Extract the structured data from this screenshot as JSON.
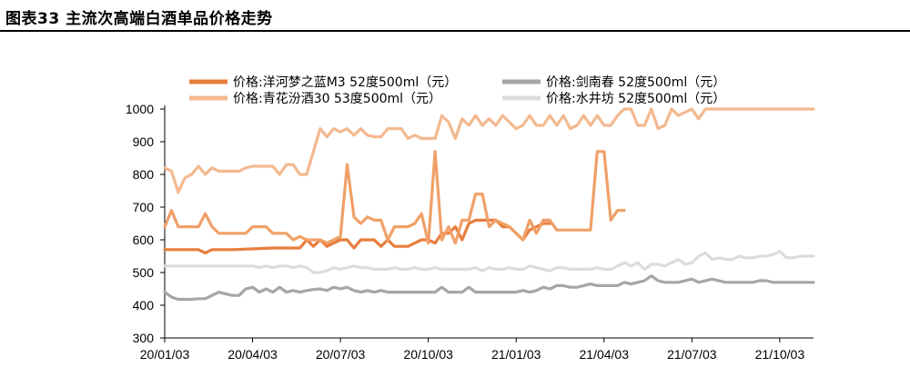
{
  "figure": {
    "title": "图表33    主流次高端白酒单品价格走势"
  },
  "chart_data": {
    "type": "line",
    "x_labels": [
      "20/01/03",
      "20/04/03",
      "20/07/03",
      "20/10/03",
      "21/01/03",
      "21/04/03",
      "21/07/03",
      "21/10/03"
    ],
    "x_label_weeks": [
      0,
      13,
      26,
      39,
      52,
      65,
      78,
      91
    ],
    "ylim": [
      300,
      1000
    ],
    "yticks": [
      300,
      400,
      500,
      600,
      700,
      800,
      900,
      1000
    ],
    "xlabel": "",
    "ylabel": "",
    "grid": false,
    "legend_position": "top",
    "series": [
      {
        "name": "价格:洋河梦之蓝M3 52度500ml（元）",
        "color": "#E87D3E",
        "width": 3.2,
        "weeks": [
          0,
          5,
          6,
          7,
          10,
          16,
          20,
          21,
          22,
          23,
          24,
          25,
          26,
          27,
          28,
          29,
          30,
          31,
          32,
          33,
          34,
          35,
          36,
          37,
          38,
          39,
          40,
          41,
          42,
          43,
          44,
          45,
          46,
          47,
          48,
          49,
          50,
          51,
          52,
          53,
          54,
          55,
          56,
          57
        ],
        "values": [
          570,
          570,
          560,
          570,
          570,
          575,
          575,
          600,
          580,
          600,
          580,
          590,
          600,
          600,
          575,
          600,
          600,
          600,
          580,
          600,
          580,
          580,
          580,
          590,
          600,
          600,
          590,
          620,
          620,
          640,
          600,
          650,
          660,
          660,
          660,
          660,
          640,
          640,
          620,
          600,
          630,
          640,
          650,
          650
        ]
      },
      {
        "name": "价格:剑南春 52度500ml（元）",
        "color": "#A6A6A6",
        "width": 3.2,
        "weeks": [
          0,
          1,
          2,
          3,
          4,
          5,
          6,
          7,
          8,
          9,
          10,
          11,
          12,
          13,
          14,
          15,
          16,
          17,
          18,
          19,
          20,
          21,
          22,
          23,
          24,
          25,
          26,
          27,
          28,
          29,
          30,
          31,
          32,
          33,
          34,
          35,
          36,
          37,
          38,
          39,
          40,
          41,
          42,
          43,
          44,
          45,
          46,
          47,
          48,
          49,
          50,
          51,
          52,
          53,
          54,
          55,
          56,
          57,
          58,
          59,
          60,
          61,
          62,
          63,
          64,
          65,
          66,
          67,
          68,
          69,
          70,
          71,
          72,
          73,
          74,
          75,
          76,
          77,
          78,
          79,
          80,
          81,
          82,
          83,
          84,
          85,
          86,
          87,
          88,
          89,
          90,
          91,
          92,
          93,
          94,
          95,
          96
        ],
        "values": [
          440,
          425,
          418,
          418,
          418,
          420,
          420,
          430,
          440,
          435,
          430,
          430,
          450,
          455,
          440,
          450,
          440,
          455,
          440,
          445,
          440,
          445,
          448,
          450,
          445,
          455,
          450,
          455,
          445,
          440,
          445,
          440,
          445,
          440,
          440,
          440,
          440,
          440,
          440,
          440,
          440,
          455,
          440,
          440,
          440,
          455,
          440,
          440,
          440,
          440,
          440,
          440,
          440,
          445,
          440,
          445,
          455,
          450,
          460,
          460,
          455,
          455,
          460,
          465,
          460,
          460,
          460,
          460,
          470,
          465,
          470,
          475,
          490,
          475,
          470,
          470,
          470,
          475,
          480,
          470,
          475,
          480,
          475,
          470,
          470,
          470,
          470,
          470,
          475,
          475,
          470,
          470,
          470,
          470,
          470,
          470,
          470
        ]
      },
      {
        "name": "价格:青花汾酒30 53度500ml（元）",
        "color": "#F3B98F",
        "width": 3.2,
        "weeks": [
          0,
          1,
          2,
          3,
          4,
          5,
          6,
          7,
          8,
          9,
          10,
          11,
          12,
          13,
          14,
          15,
          16,
          17,
          18,
          19,
          20,
          21,
          22,
          23,
          24,
          25,
          26,
          27,
          28,
          29,
          30,
          31,
          32,
          33,
          34,
          35,
          36,
          37,
          38,
          39,
          40,
          41,
          42,
          43,
          44,
          45,
          46,
          47,
          48,
          49,
          50,
          51,
          52,
          53,
          54,
          55,
          56,
          57,
          58,
          59,
          60,
          61,
          62,
          63,
          64,
          65,
          66,
          67,
          68,
          69,
          70,
          71,
          72,
          73,
          74,
          75,
          76,
          77,
          78,
          79,
          80,
          81,
          82,
          83,
          84,
          85,
          86,
          87,
          88,
          89,
          90,
          91,
          92,
          93,
          94,
          95,
          96
        ],
        "values": [
          820,
          810,
          745,
          790,
          800,
          825,
          800,
          820,
          810,
          810,
          810,
          810,
          820,
          825,
          825,
          825,
          825,
          800,
          830,
          830,
          800,
          800,
          870,
          940,
          915,
          940,
          930,
          940,
          920,
          940,
          920,
          915,
          915,
          940,
          940,
          940,
          910,
          920,
          910,
          910,
          910,
          980,
          960,
          910,
          970,
          950,
          980,
          950,
          970,
          950,
          980,
          960,
          940,
          950,
          980,
          950,
          950,
          980,
          950,
          980,
          940,
          950,
          980,
          950,
          980,
          950,
          950,
          980,
          1000,
          1000,
          950,
          950,
          1000,
          940,
          950,
          1000,
          980,
          990,
          1000,
          970,
          1000,
          1000,
          1000,
          1000,
          1000,
          1000,
          1000,
          1000,
          1000,
          1000,
          1000,
          1000,
          1000,
          1000,
          1000,
          1000,
          1000
        ]
      },
      {
        "name": "价格:水井坊 52度500ml（元）",
        "color": "#DCDCDC",
        "width": 3.2,
        "weeks": [
          0,
          1,
          2,
          3,
          4,
          5,
          6,
          7,
          8,
          9,
          10,
          11,
          12,
          13,
          14,
          15,
          16,
          17,
          18,
          19,
          20,
          21,
          22,
          23,
          24,
          25,
          26,
          27,
          28,
          29,
          30,
          31,
          32,
          33,
          34,
          35,
          36,
          37,
          38,
          39,
          40,
          41,
          42,
          43,
          44,
          45,
          46,
          47,
          48,
          49,
          50,
          51,
          52,
          53,
          54,
          55,
          56,
          57,
          58,
          59,
          60,
          61,
          62,
          63,
          64,
          65,
          66,
          67,
          68,
          69,
          70,
          71,
          72,
          73,
          74,
          75,
          76,
          77,
          78,
          79,
          80,
          81,
          82,
          83,
          84,
          85,
          86,
          87,
          88,
          89,
          90,
          91,
          92,
          93,
          94,
          95,
          96
        ],
        "values": [
          520,
          520,
          520,
          520,
          520,
          520,
          520,
          520,
          520,
          520,
          520,
          520,
          520,
          520,
          515,
          520,
          515,
          520,
          520,
          515,
          520,
          515,
          500,
          500,
          505,
          515,
          510,
          515,
          520,
          515,
          515,
          510,
          510,
          510,
          515,
          510,
          510,
          515,
          510,
          510,
          515,
          510,
          510,
          510,
          510,
          510,
          515,
          505,
          515,
          510,
          510,
          515,
          510,
          510,
          520,
          515,
          510,
          505,
          515,
          515,
          510,
          510,
          510,
          510,
          515,
          510,
          510,
          520,
          530,
          520,
          530,
          510,
          525,
          525,
          520,
          530,
          540,
          525,
          530,
          550,
          560,
          540,
          545,
          540,
          540,
          550,
          545,
          545,
          550,
          550,
          555,
          565,
          545,
          545,
          550,
          550,
          550
        ]
      },
      {
        "name": "",
        "color": "#F0A068",
        "width": 3.2,
        "weeks": [
          0,
          1,
          2,
          3,
          4,
          5,
          6,
          7,
          8,
          9,
          10,
          11,
          12,
          13,
          14,
          15,
          16,
          17,
          18,
          19,
          20,
          21,
          22,
          23,
          24,
          25,
          26,
          27,
          28,
          29,
          30,
          31,
          32,
          33,
          34,
          35,
          36,
          37,
          38,
          39,
          40,
          41,
          42,
          43,
          44,
          45,
          46,
          47,
          48,
          49,
          50,
          51,
          52,
          53,
          54,
          55,
          56,
          57,
          58,
          59,
          60,
          61,
          62,
          63,
          64,
          65,
          66,
          67,
          68
        ],
        "values": [
          640,
          690,
          640,
          640,
          640,
          640,
          680,
          640,
          620,
          620,
          620,
          620,
          620,
          640,
          640,
          640,
          620,
          620,
          620,
          600,
          610,
          600,
          600,
          600,
          590,
          600,
          610,
          830,
          670,
          650,
          670,
          660,
          660,
          600,
          640,
          640,
          640,
          650,
          680,
          590,
          870,
          600,
          640,
          590,
          660,
          660,
          740,
          740,
          640,
          660,
          650,
          640,
          620,
          600,
          660,
          620,
          660,
          660,
          630,
          630,
          630,
          630,
          630,
          630,
          870,
          870,
          660,
          690,
          690
        ]
      }
    ]
  }
}
